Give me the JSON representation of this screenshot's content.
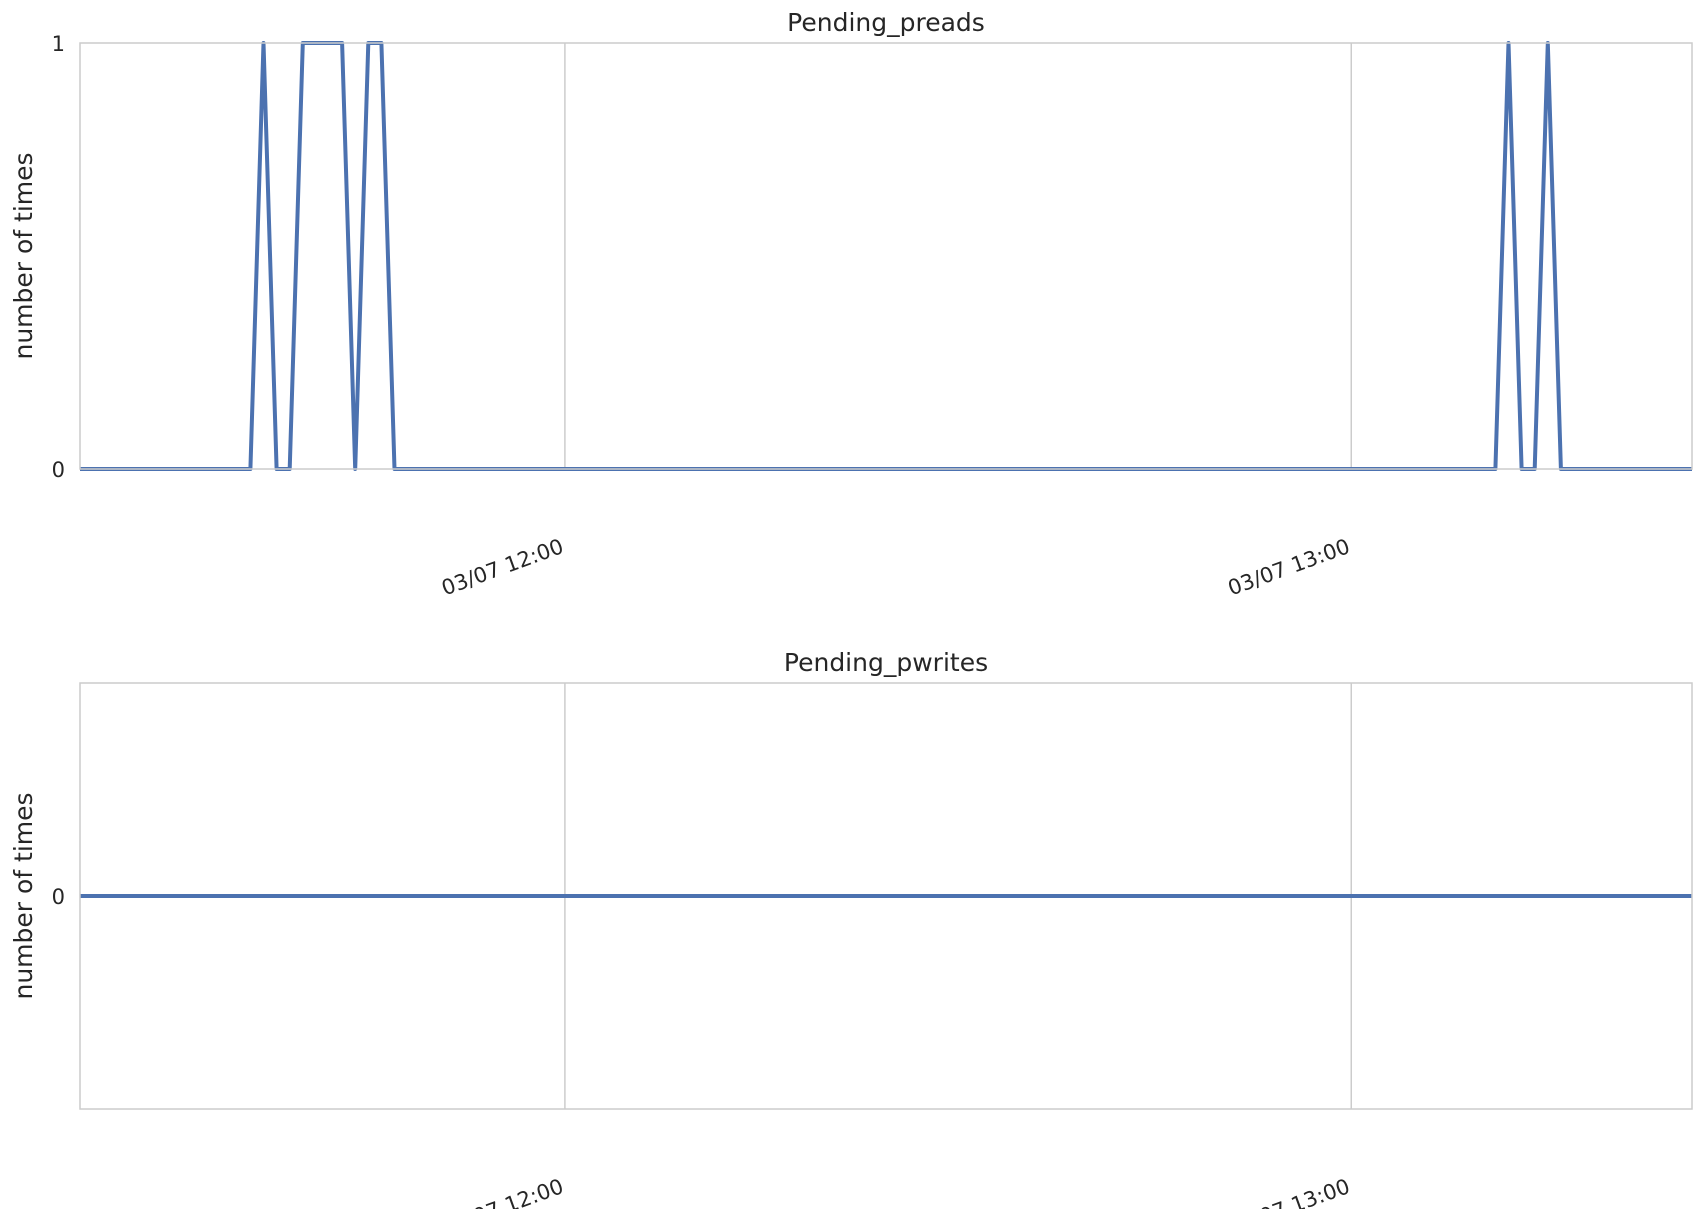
{
  "chart_data": [
    {
      "type": "line",
      "title": "Pending_preads",
      "ylabel": "number of times",
      "xlabel": "",
      "x_ticks": [
        "03/07 12:00",
        "03/07 13:00"
      ],
      "y_ticks": [
        "0",
        "1"
      ],
      "xlim": [
        "03/07 11:23",
        "03/07 13:26"
      ],
      "ylim": [
        0,
        1
      ],
      "grid": true,
      "legend": "none",
      "series": [
        {
          "color": "#4c72b0",
          "points": [
            [
              "03/07 11:23",
              0
            ],
            [
              "03/07 11:36",
              0
            ],
            [
              "03/07 11:37",
              1
            ],
            [
              "03/07 11:38",
              0
            ],
            [
              "03/07 11:39",
              0
            ],
            [
              "03/07 11:40",
              1
            ],
            [
              "03/07 11:43",
              1
            ],
            [
              "03/07 11:44",
              0
            ],
            [
              "03/07 11:45",
              1
            ],
            [
              "03/07 11:46",
              1
            ],
            [
              "03/07 11:47",
              0
            ],
            [
              "03/07 13:11",
              0
            ],
            [
              "03/07 13:12",
              1
            ],
            [
              "03/07 13:13",
              0
            ],
            [
              "03/07 13:14",
              0
            ],
            [
              "03/07 13:15",
              1
            ],
            [
              "03/07 13:16",
              0
            ],
            [
              "03/07 13:26",
              0
            ]
          ]
        }
      ]
    },
    {
      "type": "line",
      "title": "Pending_pwrites",
      "ylabel": "number of times",
      "xlabel": "",
      "x_ticks": [
        "03/07 12:00",
        "03/07 13:00"
      ],
      "y_ticks": [
        "0"
      ],
      "xlim": [
        "03/07 11:23",
        "03/07 13:26"
      ],
      "ylim": [
        -0.5,
        0.5
      ],
      "grid": true,
      "legend": "none",
      "series": [
        {
          "color": "#4c72b0",
          "points": [
            [
              "03/07 11:23",
              0
            ],
            [
              "03/07 13:26",
              0
            ]
          ]
        }
      ]
    }
  ]
}
